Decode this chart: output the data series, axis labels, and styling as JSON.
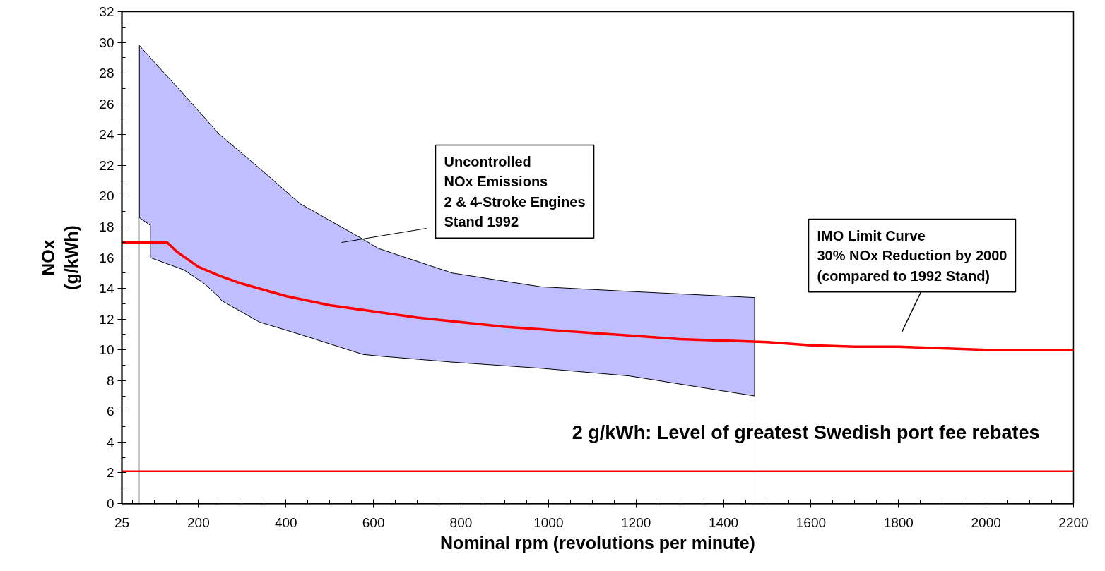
{
  "chart_data": {
    "type": "line",
    "xlabel": "Nominal rpm (revolutions per minute)",
    "ylabel": "NOx\n(g/kWh)",
    "xlim": [
      25,
      2200
    ],
    "xticks": [
      25,
      200,
      400,
      600,
      800,
      1000,
      1200,
      1400,
      1600,
      1800,
      2000,
      2200
    ],
    "ylim": [
      0,
      32
    ],
    "yticks": [
      0,
      2,
      4,
      6,
      8,
      10,
      12,
      14,
      16,
      18,
      20,
      22,
      24,
      26,
      28,
      30,
      32
    ],
    "grid": false,
    "series": [
      {
        "type": "area",
        "color": "#bfbfff",
        "x": [
          65,
          90,
          90,
          167,
          214,
          248,
          253,
          340,
          433,
          576,
          611,
          780,
          983,
          1185,
          1471
        ],
        "values": [
          29.8,
          29.0,
          29.0,
          26.6,
          25.1,
          24.0,
          23.9,
          21.8,
          19.5,
          17.2,
          16.6,
          15.0,
          14.1,
          13.8,
          13.4
        ]
      },
      {
        "type": "area",
        "color": "#ffffff",
        "x": [
          65,
          90,
          90,
          167,
          214,
          248,
          253,
          340,
          433,
          576,
          611,
          780,
          983,
          1185,
          1471
        ],
        "values": [
          18.6,
          18.1,
          16.0,
          15.2,
          14.3,
          13.4,
          13.2,
          11.8,
          11.0,
          9.7,
          9.6,
          9.2,
          8.8,
          8.3,
          7.0
        ]
      },
      {
        "color": "#ff0000",
        "x": [
          25,
          128,
          150,
          200,
          250,
          300,
          350,
          400,
          450,
          500,
          600,
          700,
          800,
          900,
          1000,
          1100,
          1200,
          1300,
          1400,
          1500,
          1600,
          1700,
          1800,
          1900,
          2000,
          2200
        ],
        "values": [
          17,
          17,
          16.4,
          15.4,
          14.8,
          14.3,
          13.9,
          13.5,
          13.2,
          12.9,
          12.5,
          12.1,
          11.8,
          11.5,
          11.3,
          11.1,
          10.9,
          10.7,
          10.6,
          10.5,
          10.3,
          10.2,
          10.2,
          10.1,
          10.0,
          10.0
        ]
      }
    ],
    "ref_lines": [
      {
        "axis": "y",
        "value": 2.1,
        "color": "#ff0000",
        "label": "2 g/kWh: Level of greatest Swedish port fee rebates"
      }
    ],
    "annotations": [
      "Uncontrolled\nNOx Emissions\n2 & 4-Stroke Engines\nStand 1992",
      "IMO Limit Curve\n30% NOx Reduction by 2000\n(compared to 1992 Stand)"
    ]
  }
}
